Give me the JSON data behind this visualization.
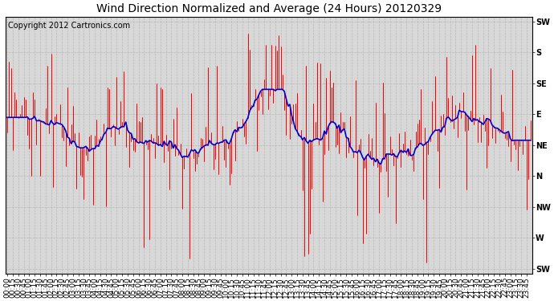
{
  "title": "Wind Direction Normalized and Average (24 Hours) 20120329",
  "copyright_text": "Copyright 2012 Cartronics.com",
  "ytick_labels": [
    "SW",
    "S",
    "SE",
    "E",
    "NE",
    "N",
    "NW",
    "W",
    "SW"
  ],
  "ytick_values": [
    8,
    7,
    6,
    5,
    4,
    3,
    2,
    1,
    0
  ],
  "ylim": [
    -0.15,
    8.15
  ],
  "bg_color": "#ffffff",
  "plot_bg_color": "#d8d8d8",
  "grid_color": "#b0b0b0",
  "red_color": "#ff0000",
  "blue_color": "#0000cc",
  "title_fontsize": 10,
  "copyright_fontsize": 7,
  "tick_fontsize": 7,
  "figwidth": 6.9,
  "figheight": 3.75,
  "dpi": 100
}
